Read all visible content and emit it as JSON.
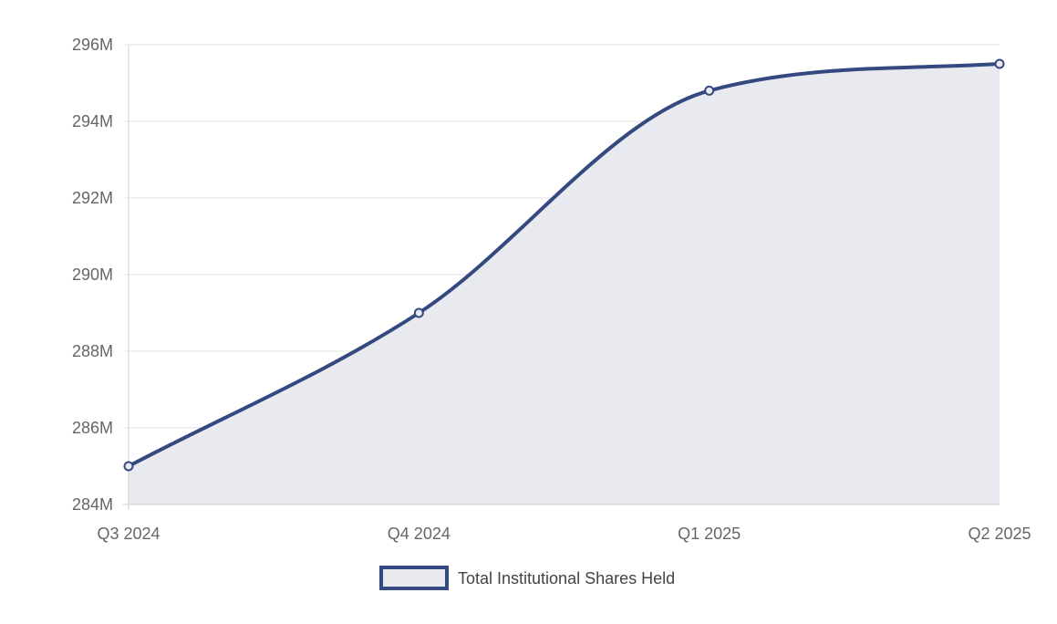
{
  "chart_data": {
    "type": "area",
    "title": "",
    "xlabel": "",
    "ylabel": "",
    "categories": [
      "Q3 2024",
      "Q4 2024",
      "Q1 2025",
      "Q2 2025"
    ],
    "series": [
      {
        "name": "Total Institutional Shares Held",
        "values": [
          285000000,
          289000000,
          294800000,
          295500000
        ]
      }
    ],
    "ylim": [
      284000000,
      296000000
    ],
    "yticks": [
      284000000,
      286000000,
      288000000,
      290000000,
      292000000,
      294000000,
      296000000
    ],
    "ytick_labels": [
      "284M",
      "286M",
      "288M",
      "290M",
      "292M",
      "294M",
      "296M"
    ],
    "grid": true,
    "legend_position": "bottom-center",
    "smooth": true,
    "colors": {
      "line": "#34497f",
      "fill": "#e9eaf0",
      "grid": "#e3e3e3",
      "axis": "#cfcfcf",
      "tick_text": "#666666",
      "legend_text": "#444444"
    }
  }
}
